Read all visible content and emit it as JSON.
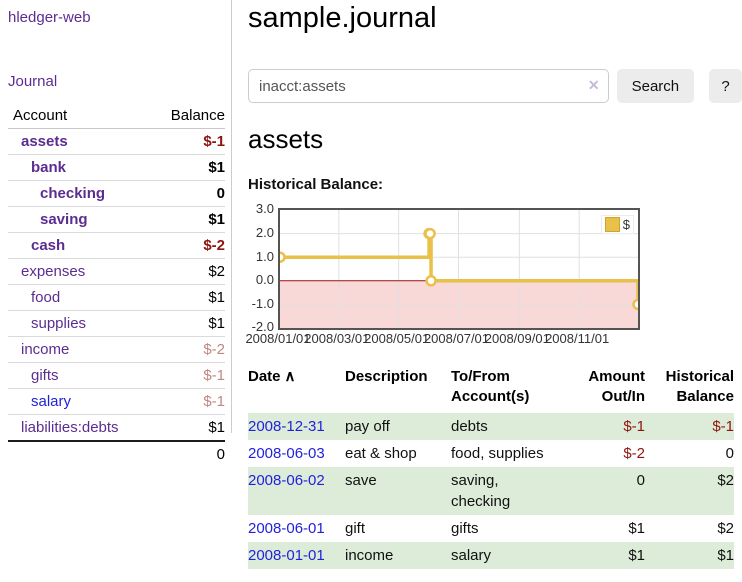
{
  "app": {
    "title": "hledger-web",
    "nav_journal": "Journal"
  },
  "colors": {
    "link_purple": "#5c2d91",
    "link_blue": "#2222dd",
    "negative_strong": "#8c1510",
    "negative_soft": "#c08783",
    "row_green": "#dcecd8",
    "chart_line_gold": "#e9c04a",
    "chart_negative_fill": "#f9d8d8",
    "chart_zero_line": "#9e0e0e",
    "button_bg": "#ececec"
  },
  "sidebar": {
    "col_account": "Account",
    "col_balance": "Balance",
    "accounts": [
      {
        "name": "assets",
        "balance": "$-1",
        "indent": 1,
        "bold": true,
        "amount_style": "negative",
        "link_style": "purple"
      },
      {
        "name": "bank",
        "balance": "$1",
        "indent": 2,
        "bold": true,
        "amount_style": "normal",
        "link_style": "purple"
      },
      {
        "name": "checking",
        "balance": "0",
        "indent": 3,
        "bold": true,
        "amount_style": "normal",
        "link_style": "purple"
      },
      {
        "name": "saving",
        "balance": "$1",
        "indent": 3,
        "bold": true,
        "amount_style": "normal",
        "link_style": "purple"
      },
      {
        "name": "cash",
        "balance": "$-2",
        "indent": 2,
        "bold": true,
        "amount_style": "negative",
        "link_style": "purple"
      },
      {
        "name": "expenses",
        "balance": "$2",
        "indent": 1,
        "bold": false,
        "amount_style": "normal",
        "link_style": "purple"
      },
      {
        "name": "food",
        "balance": "$1",
        "indent": 2,
        "bold": false,
        "amount_style": "normal",
        "link_style": "purple"
      },
      {
        "name": "supplies",
        "balance": "$1",
        "indent": 2,
        "bold": false,
        "amount_style": "normal",
        "link_style": "purple"
      },
      {
        "name": "income",
        "balance": "$-2",
        "indent": 1,
        "bold": false,
        "amount_style": "soft",
        "link_style": "purple"
      },
      {
        "name": "gifts",
        "balance": "$-1",
        "indent": 2,
        "bold": false,
        "amount_style": "soft",
        "link_style": "purple"
      },
      {
        "name": "salary",
        "balance": "$-1",
        "indent": 2,
        "bold": false,
        "amount_style": "soft",
        "link_style": "blue"
      },
      {
        "name": "liabilities:debts",
        "balance": "$1",
        "indent": 1,
        "bold": false,
        "amount_style": "normal",
        "link_style": "purple"
      }
    ],
    "total": "0"
  },
  "header": {
    "title": "sample.journal"
  },
  "search": {
    "value": "inacct:assets",
    "clear_icon": "✕",
    "button": "Search",
    "help_button": "?"
  },
  "section": {
    "title": "assets",
    "chart_label": "Historical Balance:"
  },
  "chart_data": {
    "type": "line",
    "step": true,
    "title": "Historical Balance:",
    "series": [
      {
        "name": "$",
        "color": "#e9c04a",
        "points": [
          {
            "x": "2008-01-01",
            "y": 1
          },
          {
            "x": "2008-06-01",
            "y": 2
          },
          {
            "x": "2008-06-02",
            "y": 2
          },
          {
            "x": "2008-06-03",
            "y": 0
          },
          {
            "x": "2008-12-31",
            "y": -1
          }
        ]
      }
    ],
    "xlim": [
      "2008-01-01",
      "2008-12-31"
    ],
    "ylim": [
      -2,
      3
    ],
    "y_ticks": [
      "3.0",
      "2.0",
      "1.0",
      "0.0",
      "-1.0",
      "-2.0"
    ],
    "x_ticks": [
      "2008/01/01",
      "2008/03/01",
      "2008/05/01",
      "2008/07/01",
      "2008/09/01",
      "2008/11/01"
    ],
    "grid": true,
    "legend": {
      "label": "$",
      "position": "top-right"
    },
    "negative_region": {
      "from": 0,
      "to": -2,
      "fill": "#f9d8d8",
      "edge_color": "#9e0e0e"
    }
  },
  "transactions": {
    "sort_icon": "∧",
    "columns": [
      {
        "label": "Date",
        "align": "left",
        "sortable": true
      },
      {
        "label": "Description",
        "align": "left"
      },
      {
        "label": "To/From Account(s)",
        "align": "left"
      },
      {
        "label": "Amount Out/In",
        "align": "right"
      },
      {
        "label": "Historical Balance",
        "align": "right"
      }
    ],
    "rows": [
      {
        "date": "2008-12-31",
        "description": "pay off",
        "accounts": "debts",
        "amount": "$-1",
        "balance": "$-1",
        "green": true
      },
      {
        "date": "2008-06-03",
        "description": "eat & shop",
        "accounts": "food, supplies",
        "amount": "$-2",
        "balance": "0",
        "green": false
      },
      {
        "date": "2008-06-02",
        "description": "save",
        "accounts": "saving,\nchecking",
        "amount": "0",
        "balance": "$2",
        "green": true
      },
      {
        "date": "2008-06-01",
        "description": "gift",
        "accounts": "gifts",
        "amount": "$1",
        "balance": "$2",
        "green": false
      },
      {
        "date": "2008-01-01",
        "description": "income",
        "accounts": "salary",
        "amount": "$1",
        "balance": "$1",
        "green": true
      }
    ]
  }
}
